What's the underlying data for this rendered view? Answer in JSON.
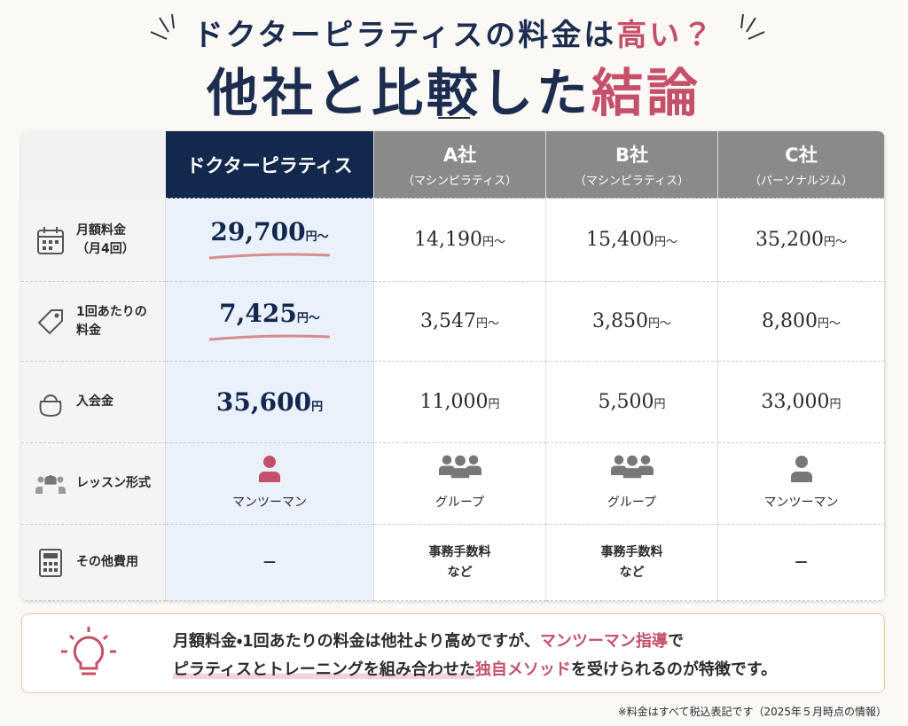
{
  "header": {
    "line1": [
      "ドクターピラティスの料金は",
      "高い？"
    ],
    "line2": [
      "他社と比較した",
      "結論"
    ]
  },
  "table": {
    "columns": [
      {
        "name": "ドクターピラティス"
      },
      {
        "name": "A社",
        "sub": "（マシンピラティス）"
      },
      {
        "name": "B社",
        "sub": "（マシンピラティス）"
      },
      {
        "name": "C社",
        "sub": "（パーソナルジム）"
      }
    ],
    "rows": [
      {
        "label": [
          "月額料金",
          "（月4回）"
        ],
        "cells": [
          {
            "amount": "29,700",
            "unit": "円～"
          },
          {
            "amount": "14,190",
            "unit": "円～"
          },
          {
            "amount": "15,400",
            "unit": "円～"
          },
          {
            "amount": "35,200",
            "unit": "円～"
          }
        ]
      },
      {
        "label": [
          "1回あたりの",
          "料金"
        ],
        "cells": [
          {
            "amount": "7,425",
            "unit": "円～"
          },
          {
            "amount": "3,547",
            "unit": "円～"
          },
          {
            "amount": "3,850",
            "unit": "円～"
          },
          {
            "amount": "8,800",
            "unit": "円～"
          }
        ]
      },
      {
        "label": [
          "入会金"
        ],
        "cells": [
          {
            "amount": "35,600",
            "unit": "円"
          },
          {
            "amount": "11,000",
            "unit": "円"
          },
          {
            "amount": "5,500",
            "unit": "円"
          },
          {
            "amount": "33,000",
            "unit": "円"
          }
        ]
      },
      {
        "label": [
          "レッスン形式"
        ],
        "cells": [
          {
            "icon": "single",
            "text": [
              "マンツーマン"
            ]
          },
          {
            "icon": "group",
            "text": [
              "グループ"
            ]
          },
          {
            "icon": "group",
            "text": [
              "グループ"
            ]
          },
          {
            "icon": "single",
            "text": [
              "マンツーマン"
            ]
          }
        ]
      },
      {
        "label": [
          "その他費用"
        ],
        "cells": [
          {
            "text": [
              "—"
            ]
          },
          {
            "text": [
              "事務手数料",
              "など"
            ]
          },
          {
            "text": [
              "事務手数料",
              "など"
            ]
          },
          {
            "text": [
              "—"
            ]
          }
        ]
      }
    ]
  },
  "note": {
    "lines": [
      [
        {
          "text": "月額料金・1回あたりの料金は他社より高めですが、"
        },
        {
          "text": "マンツーマン指導",
          "em": true
        },
        {
          "text": "で"
        }
      ],
      [
        {
          "text": "ピラティスとトレーニングを組み合わせた",
          "underline": true
        },
        {
          "text": "独自メソッド",
          "em": true
        },
        {
          "text": "を受けられるのが特徴です。"
        }
      ]
    ]
  },
  "footnote": "※料金はすべて税込表記です（2025年５月時点の情報）"
}
